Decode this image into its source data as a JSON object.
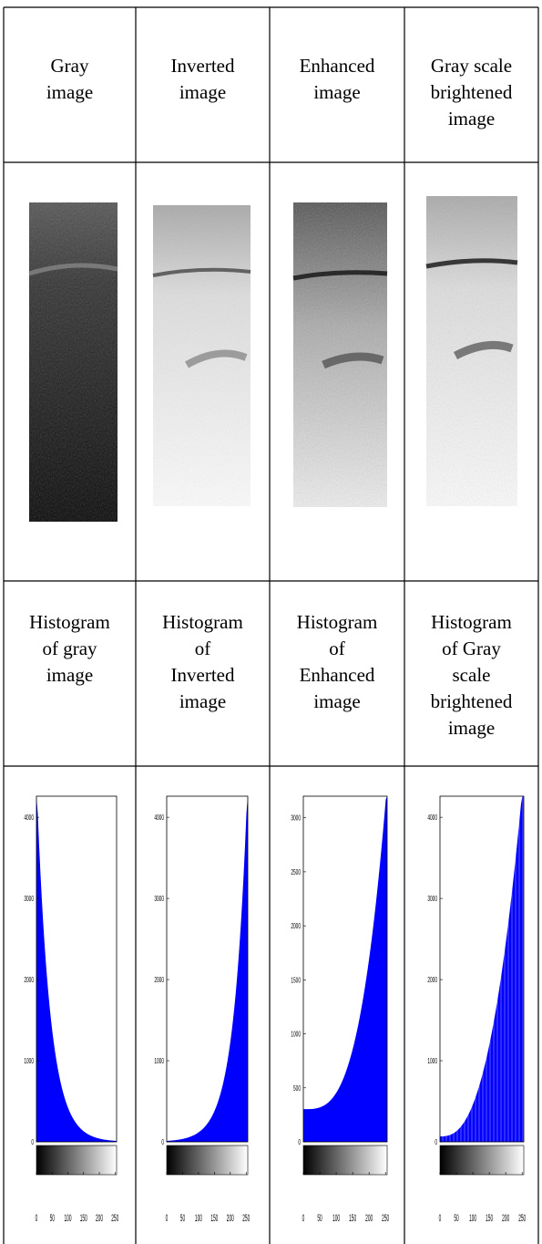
{
  "table": {
    "header": [
      "Gray image",
      "Inverted image",
      "Enhanced image",
      "Gray scale brightened image"
    ],
    "captions": [
      "Histogram of gray image",
      "Histogram of Inverted image",
      "Histogram of Enhanced image",
      "Histogram of Gray scale brightened image"
    ],
    "histograms": [
      {
        "ylim": [
          0,
          4260
        ],
        "yticks": [
          0,
          1000,
          2000,
          3000,
          4000
        ],
        "xlim": [
          0,
          255
        ],
        "xticks": [
          0,
          50,
          100,
          150,
          200,
          250
        ]
      },
      {
        "ylim": [
          0,
          4260
        ],
        "yticks": [
          0,
          1000,
          2000,
          3000,
          4000
        ],
        "xlim": [
          0,
          255
        ],
        "xticks": [
          0,
          50,
          100,
          150,
          200,
          250
        ]
      },
      {
        "ylim": [
          0,
          3200
        ],
        "yticks": [
          0,
          500,
          1000,
          1500,
          2000,
          2500,
          3000
        ],
        "xlim": [
          0,
          255
        ],
        "xticks": [
          0,
          50,
          100,
          150,
          200,
          250
        ]
      },
      {
        "ylim": [
          0,
          4260
        ],
        "yticks": [
          0,
          1000,
          2000,
          3000,
          4000
        ],
        "xlim": [
          0,
          255
        ],
        "xticks": [
          0,
          50,
          100,
          150,
          200,
          250
        ]
      }
    ]
  }
}
